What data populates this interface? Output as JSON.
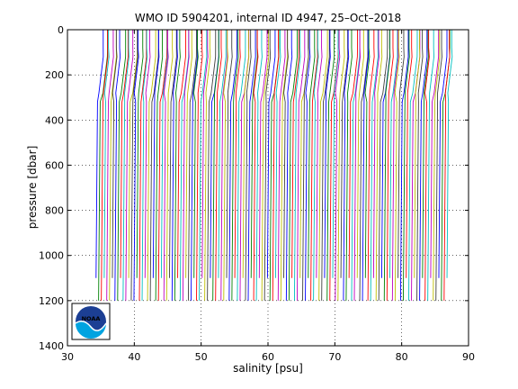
{
  "chart_data": {
    "type": "line",
    "title": "WMO ID 5904201, internal ID 4947, 25–Oct–2018",
    "xlabel": "salinity [psu]",
    "ylabel": "pressure [dbar]",
    "xlim": [
      30,
      90
    ],
    "ylim": [
      1400,
      0
    ],
    "y_reversed": true,
    "xticks": [
      "30",
      "40",
      "50",
      "60",
      "70",
      "80",
      "90"
    ],
    "yticks": [
      "0",
      "200",
      "400",
      "600",
      "800",
      "1000",
      "1200",
      "1400"
    ],
    "grid": true,
    "grid_style": "dotted",
    "legend": "none",
    "profile_offset_note_hidden": true,
    "profiles_count": 130,
    "first_profile_surface_salinity": 35.4,
    "last_profile_surface_salinity": 87.9,
    "profile_max_pressure": [
      1200,
      1100
    ],
    "series_colors": [
      "#0000ff",
      "#008000",
      "#ff0000",
      "#00bfbf",
      "#bf00bf",
      "#bfbf00",
      "#3f3f3f"
    ]
  },
  "logo": {
    "name": "noaa-logo",
    "text": "NOAA"
  }
}
